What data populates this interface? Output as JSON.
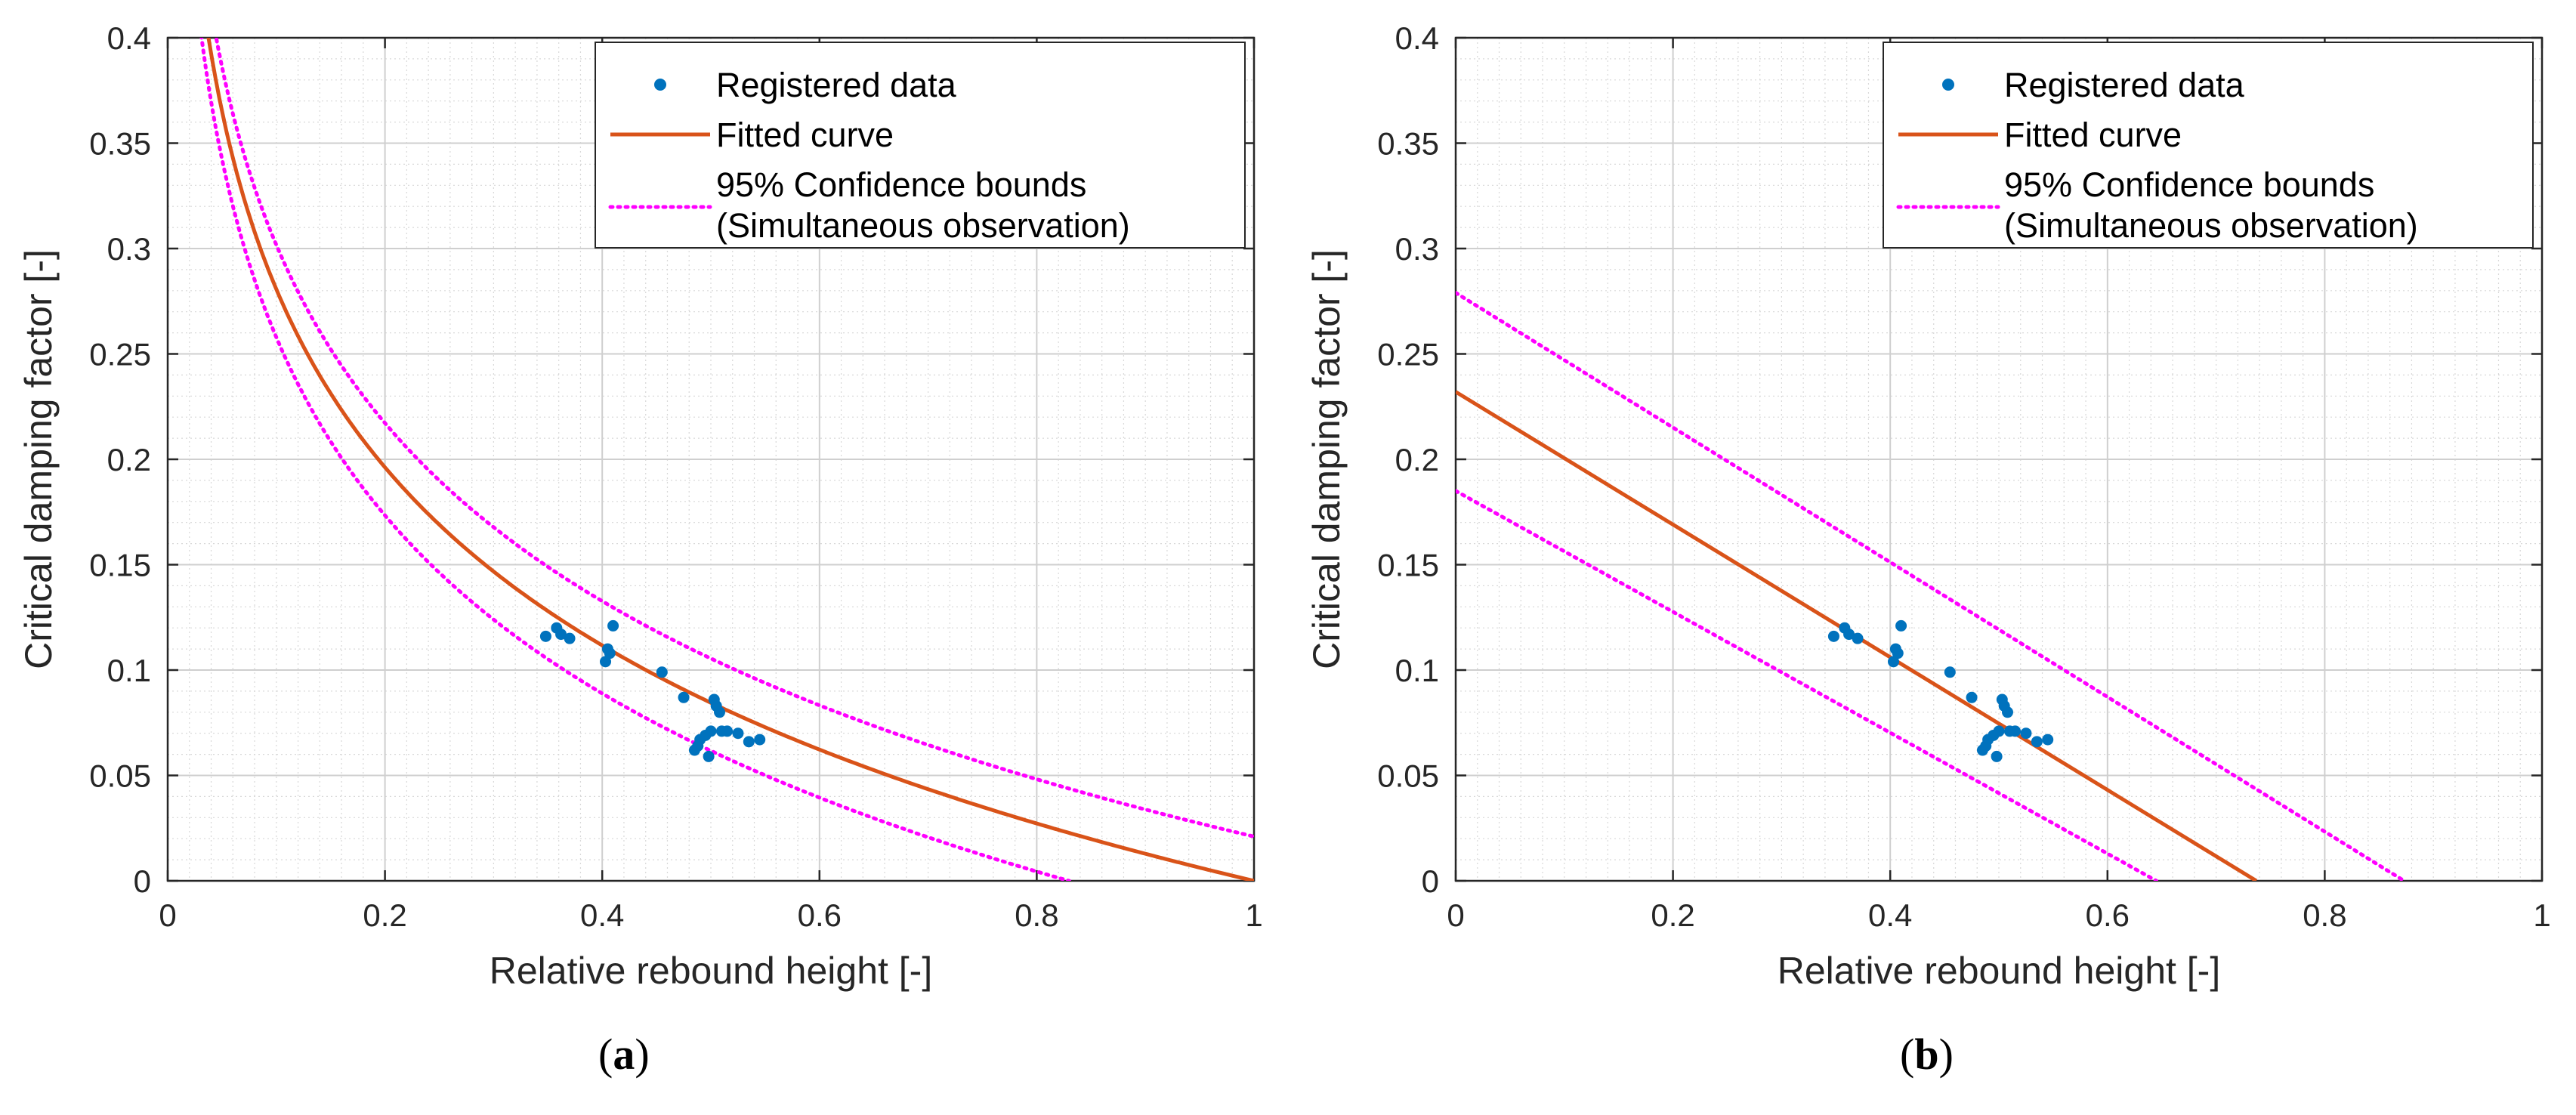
{
  "chart_data": [
    {
      "type": "scatter",
      "panel_label": "a",
      "xlabel": "Relative rebound height [-]",
      "ylabel": "Critical damping factor [-]",
      "xlim": [
        0,
        1
      ],
      "ylim": [
        0,
        0.4
      ],
      "xticks": [
        0,
        0.2,
        0.4,
        0.6,
        0.8,
        1
      ],
      "yticks": [
        0,
        0.05,
        0.1,
        0.15,
        0.2,
        0.25,
        0.3,
        0.35,
        0.4
      ],
      "xtick_labels": [
        "0",
        "0.2",
        "0.4",
        "0.6",
        "0.8",
        "1"
      ],
      "ytick_labels": [
        "0",
        "0.05",
        "0.1",
        "0.15",
        "0.2",
        "0.25",
        "0.3",
        "0.35",
        "0.4"
      ],
      "grid": true,
      "legend_position": "top-right",
      "legend": [
        {
          "label": "Registered data",
          "style": "marker"
        },
        {
          "label": "Fitted curve",
          "style": "line"
        },
        {
          "label": "95% Confidence bounds",
          "label2": "(Simultaneous observation)",
          "style": "dotted"
        }
      ],
      "colors": {
        "data": "#0072bd",
        "fit": "#d95319",
        "bounds": "#ff00ff"
      },
      "series": [
        {
          "name": "Registered data",
          "kind": "points",
          "x": [
            0.348,
            0.358,
            0.362,
            0.37,
            0.403,
            0.405,
            0.407,
            0.41,
            0.455,
            0.475,
            0.485,
            0.488,
            0.49,
            0.495,
            0.498,
            0.5,
            0.503,
            0.505,
            0.508,
            0.51,
            0.515,
            0.525,
            0.535,
            0.545
          ],
          "y": [
            0.116,
            0.12,
            0.117,
            0.115,
            0.104,
            0.11,
            0.108,
            0.121,
            0.099,
            0.087,
            0.062,
            0.064,
            0.067,
            0.069,
            0.059,
            0.071,
            0.086,
            0.083,
            0.08,
            0.071,
            0.071,
            0.07,
            0.066,
            0.067
          ]
        },
        {
          "name": "Fitted curve",
          "kind": "fit-log",
          "coef": -0.1219,
          "shift": 0.0,
          "domain": [
            0.028,
            1.0
          ]
        },
        {
          "name": "95% Confidence bounds (upper)",
          "kind": "fit-log",
          "coef": -0.1219,
          "shift": 0.021,
          "domain": [
            0.04,
            1.0
          ]
        },
        {
          "name": "95% Confidence bounds (lower)",
          "kind": "fit-log",
          "coef": -0.1219,
          "shift": -0.0228,
          "domain": [
            0.03,
            0.83
          ]
        }
      ]
    },
    {
      "type": "scatter",
      "panel_label": "b",
      "xlabel": "Relative rebound height [-]",
      "ylabel": "Critical damping factor [-]",
      "xlim": [
        0,
        1
      ],
      "ylim": [
        0,
        0.4
      ],
      "xticks": [
        0,
        0.2,
        0.4,
        0.6,
        0.8,
        1
      ],
      "yticks": [
        0,
        0.05,
        0.1,
        0.15,
        0.2,
        0.25,
        0.3,
        0.35,
        0.4
      ],
      "xtick_labels": [
        "0",
        "0.2",
        "0.4",
        "0.6",
        "0.8",
        "1"
      ],
      "ytick_labels": [
        "0",
        "0.05",
        "0.1",
        "0.15",
        "0.2",
        "0.25",
        "0.3",
        "0.35",
        "0.4"
      ],
      "grid": true,
      "legend_position": "top-right",
      "legend": [
        {
          "label": "Registered data",
          "style": "marker"
        },
        {
          "label": "Fitted curve",
          "style": "line"
        },
        {
          "label": "95% Confidence bounds",
          "label2": "(Simultaneous observation)",
          "style": "dotted"
        }
      ],
      "colors": {
        "data": "#0072bd",
        "fit": "#d95319",
        "bounds": "#ff00ff"
      },
      "series": [
        {
          "name": "Registered data",
          "kind": "points",
          "x": [
            0.348,
            0.358,
            0.362,
            0.37,
            0.403,
            0.405,
            0.407,
            0.41,
            0.455,
            0.475,
            0.485,
            0.488,
            0.49,
            0.495,
            0.498,
            0.5,
            0.503,
            0.505,
            0.508,
            0.51,
            0.515,
            0.525,
            0.535,
            0.545
          ],
          "y": [
            0.116,
            0.12,
            0.117,
            0.115,
            0.104,
            0.11,
            0.108,
            0.121,
            0.099,
            0.087,
            0.062,
            0.064,
            0.067,
            0.069,
            0.059,
            0.071,
            0.086,
            0.083,
            0.08,
            0.071,
            0.071,
            0.07,
            0.066,
            0.067
          ]
        },
        {
          "name": "Fitted curve",
          "kind": "segment",
          "x": [
            0,
            0.737
          ],
          "y": [
            0.232,
            0
          ]
        },
        {
          "name": "95% Confidence bounds (upper)",
          "kind": "segment",
          "x": [
            0,
            0.873
          ],
          "y": [
            0.279,
            0
          ]
        },
        {
          "name": "95% Confidence bounds (lower)",
          "kind": "segment",
          "x": [
            0,
            0.645
          ],
          "y": [
            0.185,
            0
          ]
        }
      ]
    }
  ]
}
